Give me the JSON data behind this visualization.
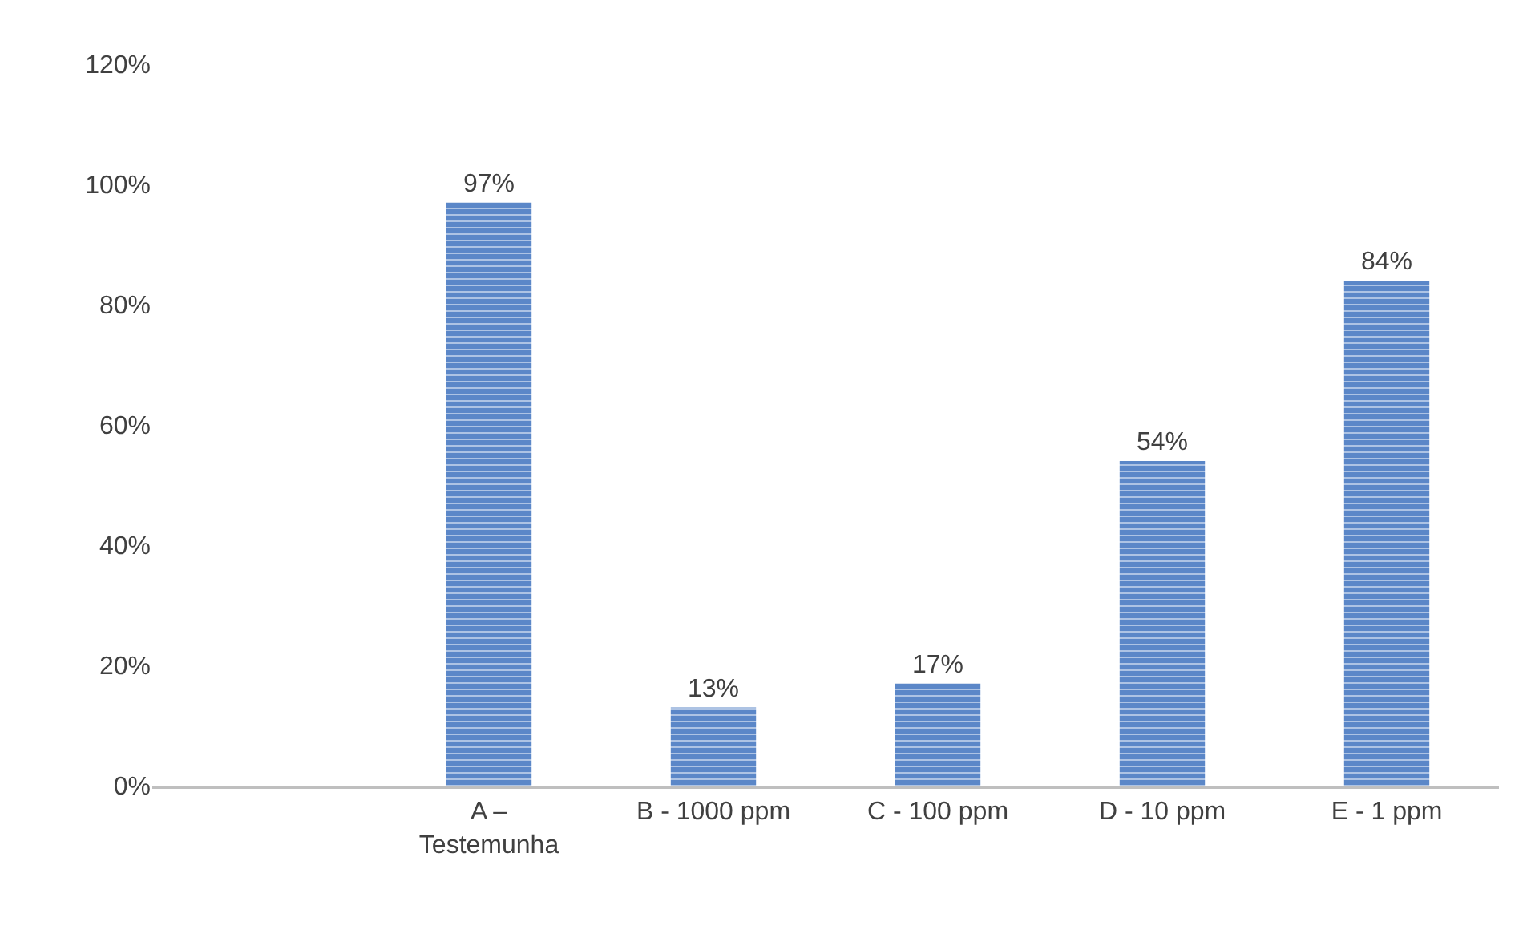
{
  "chart_data": {
    "type": "bar",
    "categories": [
      null,
      "A – Testemunha",
      "B - 1000 ppm",
      "C - 100 ppm",
      "D - 10 ppm",
      "E - 1 ppm"
    ],
    "values": [
      null,
      97,
      13,
      17,
      54,
      84
    ],
    "value_labels": [
      null,
      "97%",
      "13%",
      "17%",
      "54%",
      "84%"
    ],
    "color": "#5b87c8",
    "ylim": [
      0,
      120
    ],
    "yticks": [
      {
        "value": 0,
        "label": "0%"
      },
      {
        "value": 20,
        "label": "20%"
      },
      {
        "value": 40,
        "label": "40%"
      },
      {
        "value": 60,
        "label": "60%"
      },
      {
        "value": 80,
        "label": "80%"
      },
      {
        "value": 100,
        "label": "100%"
      },
      {
        "value": 120,
        "label": "120%"
      }
    ],
    "legend": false
  }
}
